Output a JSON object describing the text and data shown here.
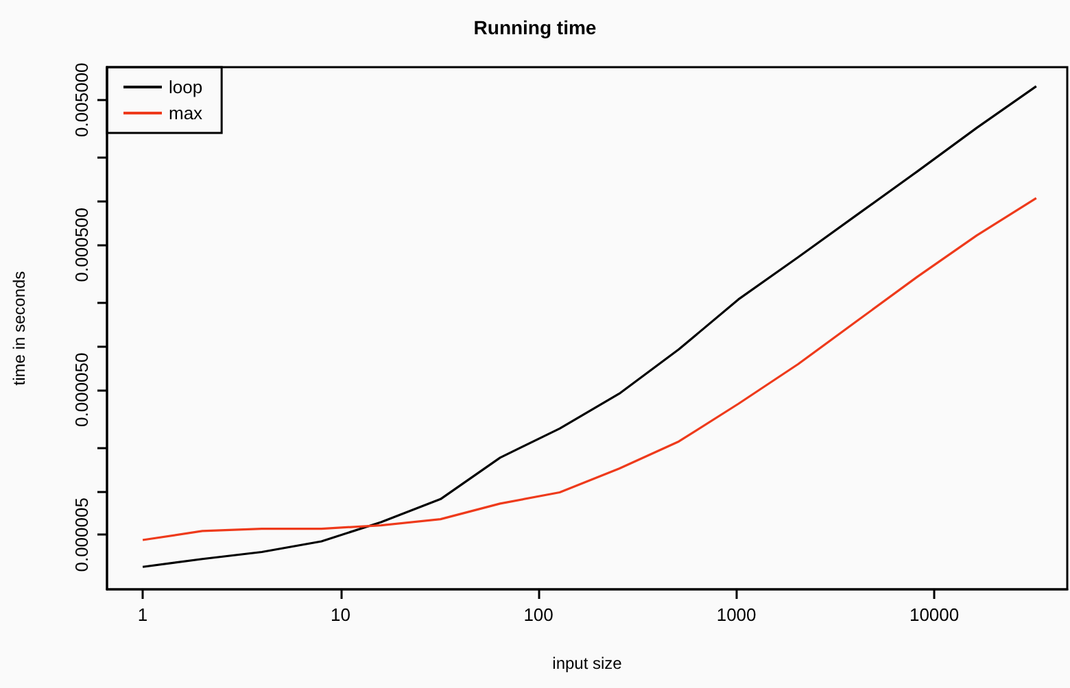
{
  "chart_data": {
    "type": "line",
    "title": "Running time",
    "xlabel": "input size",
    "ylabel": "time in seconds",
    "x": [
      1,
      2,
      4,
      8,
      16,
      32,
      64,
      128,
      256,
      512,
      1024,
      2048,
      4096,
      8192,
      16384,
      32768
    ],
    "series": [
      {
        "name": "loop",
        "color": "#000000",
        "values": [
          3e-06,
          3.4e-06,
          3.8e-06,
          4.5e-06,
          6.1e-06,
          8.8e-06,
          1.7e-05,
          2.7e-05,
          4.7e-05,
          9.5e-05,
          0.00021,
          0.00041,
          0.00081,
          0.0016,
          0.0032,
          0.0062
        ]
      },
      {
        "name": "max",
        "color": "#ee3a1b",
        "values": [
          4.6e-06,
          5.3e-06,
          5.5e-06,
          5.5e-06,
          5.8e-06,
          6.4e-06,
          8.2e-06,
          9.8e-06,
          1.43e-05,
          2.2e-05,
          4e-05,
          7.5e-05,
          0.00015,
          0.0003,
          0.00058,
          0.00105
        ]
      }
    ],
    "log": "xy",
    "xlim": [
      0.66,
      47000
    ],
    "ylim": [
      2.1e-06,
      0.0084
    ],
    "xticks": [
      1,
      10,
      100,
      1000,
      10000
    ],
    "yticks": [
      {
        "value": 5e-06,
        "label": "0.000005"
      },
      {
        "value": 1e-05,
        "label": null
      },
      {
        "value": 2e-05,
        "label": null
      },
      {
        "value": 5e-05,
        "label": "0.000050"
      },
      {
        "value": 0.0001,
        "label": null
      },
      {
        "value": 0.0002,
        "label": null
      },
      {
        "value": 0.0005,
        "label": "0.000500"
      },
      {
        "value": 0.001,
        "label": null
      },
      {
        "value": 0.002,
        "label": null
      },
      {
        "value": 0.005,
        "label": "0.005000"
      }
    ],
    "grid": false,
    "legend": "top left",
    "marker": "none",
    "line_style": "solid"
  }
}
